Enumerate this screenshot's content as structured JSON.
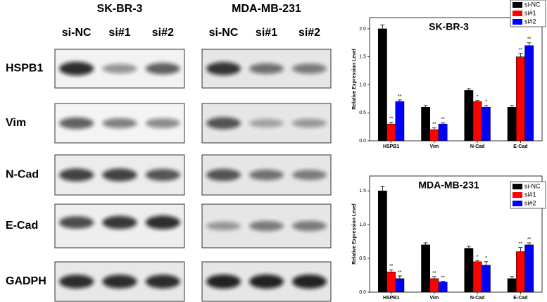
{
  "blots": {
    "panels": [
      {
        "title": "SK-BR-3",
        "lanes": [
          "si-NC",
          "si#1",
          "si#2"
        ]
      },
      {
        "title": "MDA-MB-231",
        "lanes": [
          "si-NC",
          "si#1",
          "si#2"
        ]
      }
    ],
    "rows": [
      "HSPB1",
      "Vim",
      "N-Cad",
      "E-Cad",
      "GADPH"
    ]
  },
  "chart_data": [
    {
      "type": "bar",
      "title": "SK-BR-3",
      "y_label": "Relative Expression Level",
      "categories": [
        "HSPB1",
        "Vim",
        "N-Cad",
        "E-Cad"
      ],
      "series": [
        {
          "name": "si-NC",
          "color": "#000000",
          "values": [
            2.0,
            0.6,
            0.9,
            0.6
          ],
          "errors": [
            0.07,
            0.03,
            0.03,
            0.03
          ]
        },
        {
          "name": "si#1",
          "color": "#ff0000",
          "values": [
            0.3,
            0.2,
            0.7,
            1.5
          ],
          "errors": [
            0.03,
            0.03,
            0.02,
            0.06
          ],
          "annotations": [
            "**",
            "**",
            "*",
            "**"
          ]
        },
        {
          "name": "si#2",
          "color": "#0000ff",
          "values": [
            0.7,
            0.3,
            0.6,
            1.7
          ],
          "errors": [
            0.03,
            0.02,
            0.03,
            0.05
          ],
          "annotations": [
            "**",
            "**",
            "*",
            "**"
          ]
        }
      ],
      "ylim": [
        0,
        2.2
      ],
      "yticks": [
        {
          "value": 0,
          "label": "0.0"
        },
        {
          "value": 0.5,
          "label": "0.5"
        },
        {
          "value": 1,
          "label": "1.0"
        },
        {
          "value": 1.5,
          "label": "1.5"
        },
        {
          "value": 2,
          "label": "2.0"
        }
      ],
      "legend": "top-right"
    },
    {
      "type": "bar",
      "title": "MDA-MB-231",
      "y_label": "Relative Expression Level",
      "categories": [
        "HSPB1",
        "Vim",
        "N-Cad",
        "E-Cad"
      ],
      "series": [
        {
          "name": "si-NC",
          "color": "#000000",
          "values": [
            1.5,
            0.7,
            0.65,
            0.2
          ],
          "errors": [
            0.07,
            0.03,
            0.03,
            0.03
          ]
        },
        {
          "name": "si#1",
          "color": "#ff0000",
          "values": [
            0.3,
            0.2,
            0.45,
            0.6
          ],
          "errors": [
            0.03,
            0.03,
            0.02,
            0.06
          ],
          "annotations": [
            "**",
            "**",
            "*",
            "**"
          ]
        },
        {
          "name": "si#2",
          "color": "#0000ff",
          "values": [
            0.2,
            0.15,
            0.4,
            0.7
          ],
          "errors": [
            0.04,
            0.01,
            0.05,
            0.03
          ],
          "annotations": [
            "**",
            "**",
            "*",
            "**"
          ]
        }
      ],
      "ylim": [
        0,
        1.72
      ],
      "yticks": [
        {
          "value": 0,
          "label": "0.0"
        },
        {
          "value": 0.5,
          "label": "0.5"
        },
        {
          "value": 1,
          "label": "1.0"
        },
        {
          "value": 1.5,
          "label": "1.5"
        }
      ],
      "legend": "top-right"
    }
  ]
}
